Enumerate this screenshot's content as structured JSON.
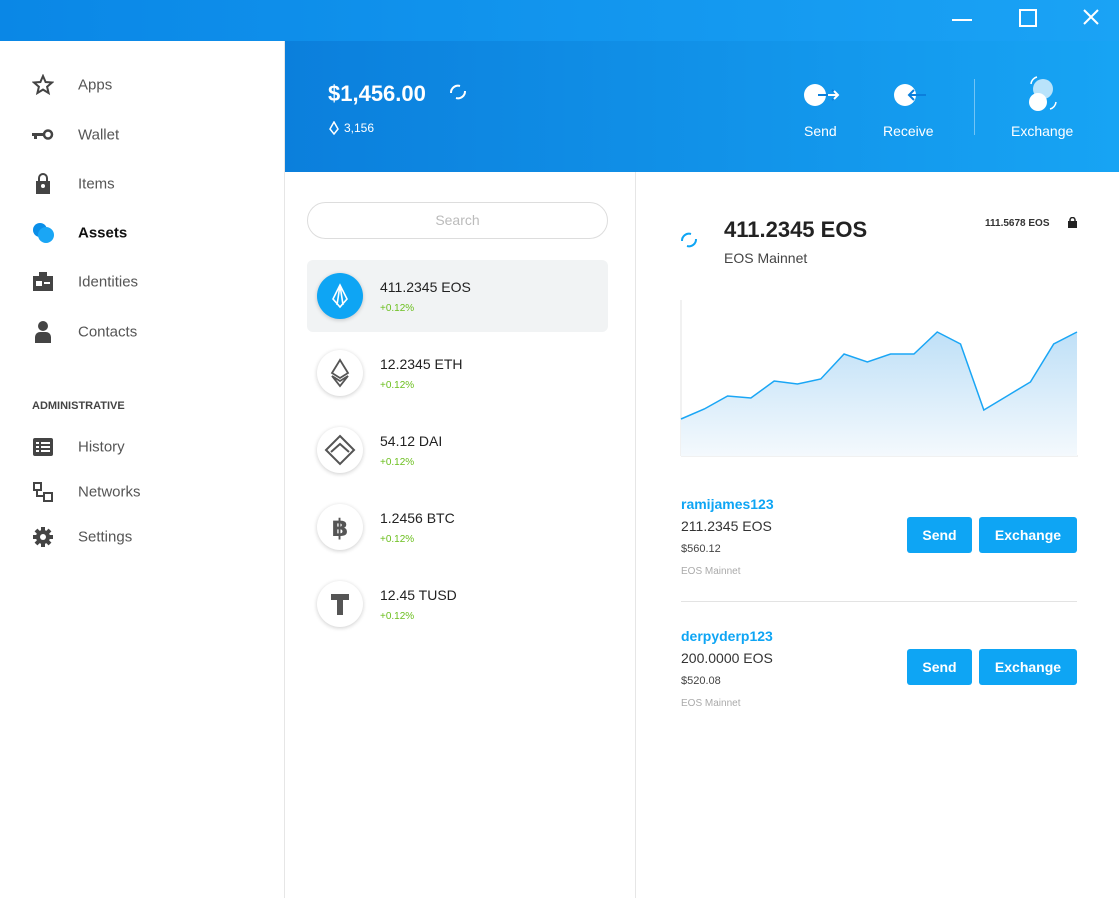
{
  "sidebar": {
    "items": [
      "Apps",
      "Wallet",
      "Items",
      "Assets",
      "Identities",
      "Contacts"
    ],
    "section": "ADMINISTRATIVE",
    "admin_items": [
      "History",
      "Networks",
      "Settings"
    ]
  },
  "header": {
    "balance": "$1,456.00",
    "tokens": "3,156",
    "actions": [
      "Send",
      "Receive",
      "Exchange"
    ]
  },
  "search": "Search",
  "assets": [
    {
      "amount": "411.2345 EOS",
      "change": "+0.12%"
    },
    {
      "amount": "12.2345 ETH",
      "change": "+0.12%"
    },
    {
      "amount": "54.12 DAI",
      "change": "+0.12%"
    },
    {
      "amount": "1.2456 BTC",
      "change": "+0.12%"
    },
    {
      "amount": "12.45 TUSD",
      "change": "+0.12%"
    }
  ],
  "detail": {
    "amount": "411.2345 EOS",
    "network": "EOS Mainnet",
    "locked": "111.5678 EOS",
    "sparkline": [
      37,
      47,
      60,
      58,
      75,
      72,
      77,
      102,
      94,
      102,
      102,
      124,
      112,
      46,
      60,
      74,
      112,
      124
    ],
    "accounts": [
      {
        "name": "ramijames123",
        "balance": "211.2345 EOS",
        "fiat": "$560.12",
        "network": "EOS Mainnet",
        "buttons": [
          "Send",
          "Exchange"
        ]
      },
      {
        "name": "derpyderp123",
        "balance": "200.0000 EOS",
        "fiat": "$520.08",
        "network": "EOS Mainnet",
        "buttons": [
          "Send",
          "Exchange"
        ]
      }
    ]
  }
}
